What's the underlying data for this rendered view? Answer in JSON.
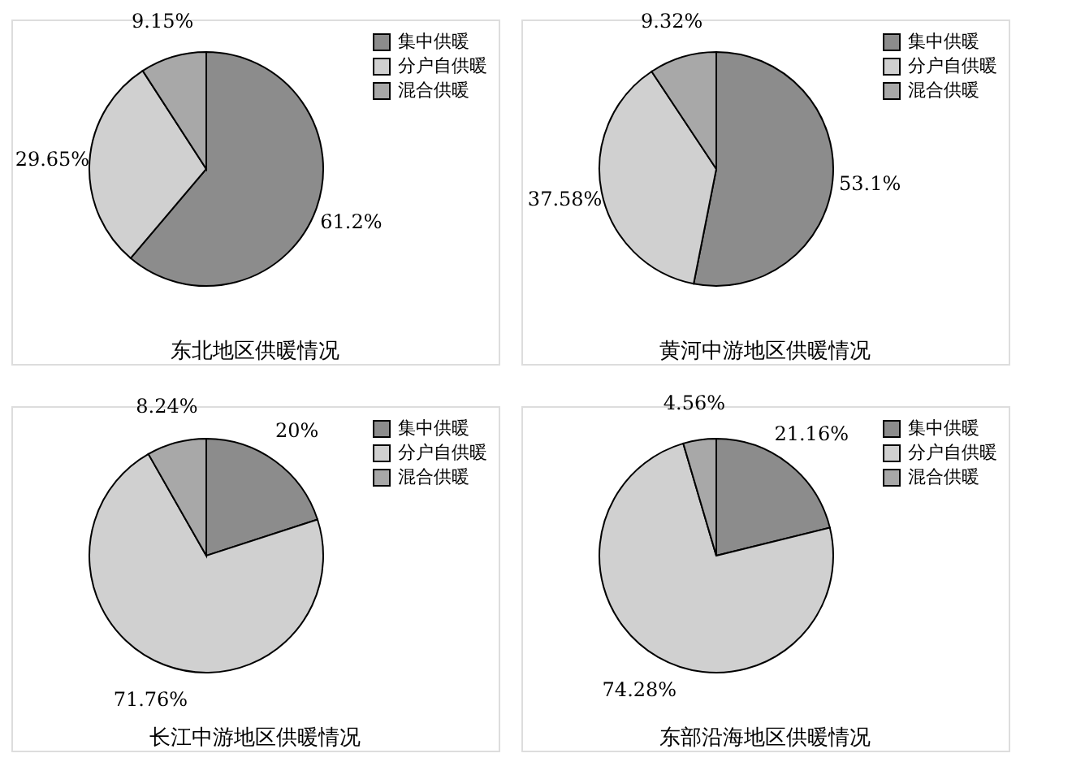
{
  "chart_data": [
    {
      "type": "pie",
      "title": "东北地区供暖情况",
      "categories": [
        "集中供暖",
        "分户自供暖",
        "混合供暖"
      ],
      "values": [
        61.2,
        29.65,
        9.15
      ],
      "value_labels": [
        "61.2%",
        "29.65%",
        "9.15%"
      ],
      "colors": [
        "#8c8c8c",
        "#d0d0d0",
        "#a8a8a8"
      ],
      "legend": "top right"
    },
    {
      "type": "pie",
      "title": "黄河中游地区供暖情况",
      "categories": [
        "集中供暖",
        "分户自供暖",
        "混合供暖"
      ],
      "values": [
        53.1,
        37.58,
        9.32
      ],
      "value_labels": [
        "53.1%",
        "37.58%",
        "9.32%"
      ],
      "colors": [
        "#8c8c8c",
        "#d0d0d0",
        "#a8a8a8"
      ],
      "legend": "top right"
    },
    {
      "type": "pie",
      "title": "长江中游地区供暖情况",
      "categories": [
        "集中供暖",
        "分户自供暖",
        "混合供暖"
      ],
      "values": [
        20,
        71.76,
        8.24
      ],
      "value_labels": [
        "20%",
        "71.76%",
        "8.24%"
      ],
      "colors": [
        "#8c8c8c",
        "#d0d0d0",
        "#a8a8a8"
      ],
      "legend": "top right"
    },
    {
      "type": "pie",
      "title": "东部沿海地区供暖情况",
      "categories": [
        "集中供暖",
        "分户自供暖",
        "混合供暖"
      ],
      "values": [
        21.16,
        74.28,
        4.56
      ],
      "value_labels": [
        "21.16%",
        "74.28%",
        "4.56%"
      ],
      "colors": [
        "#8c8c8c",
        "#d0d0d0",
        "#a8a8a8"
      ],
      "legend": "top right"
    }
  ]
}
